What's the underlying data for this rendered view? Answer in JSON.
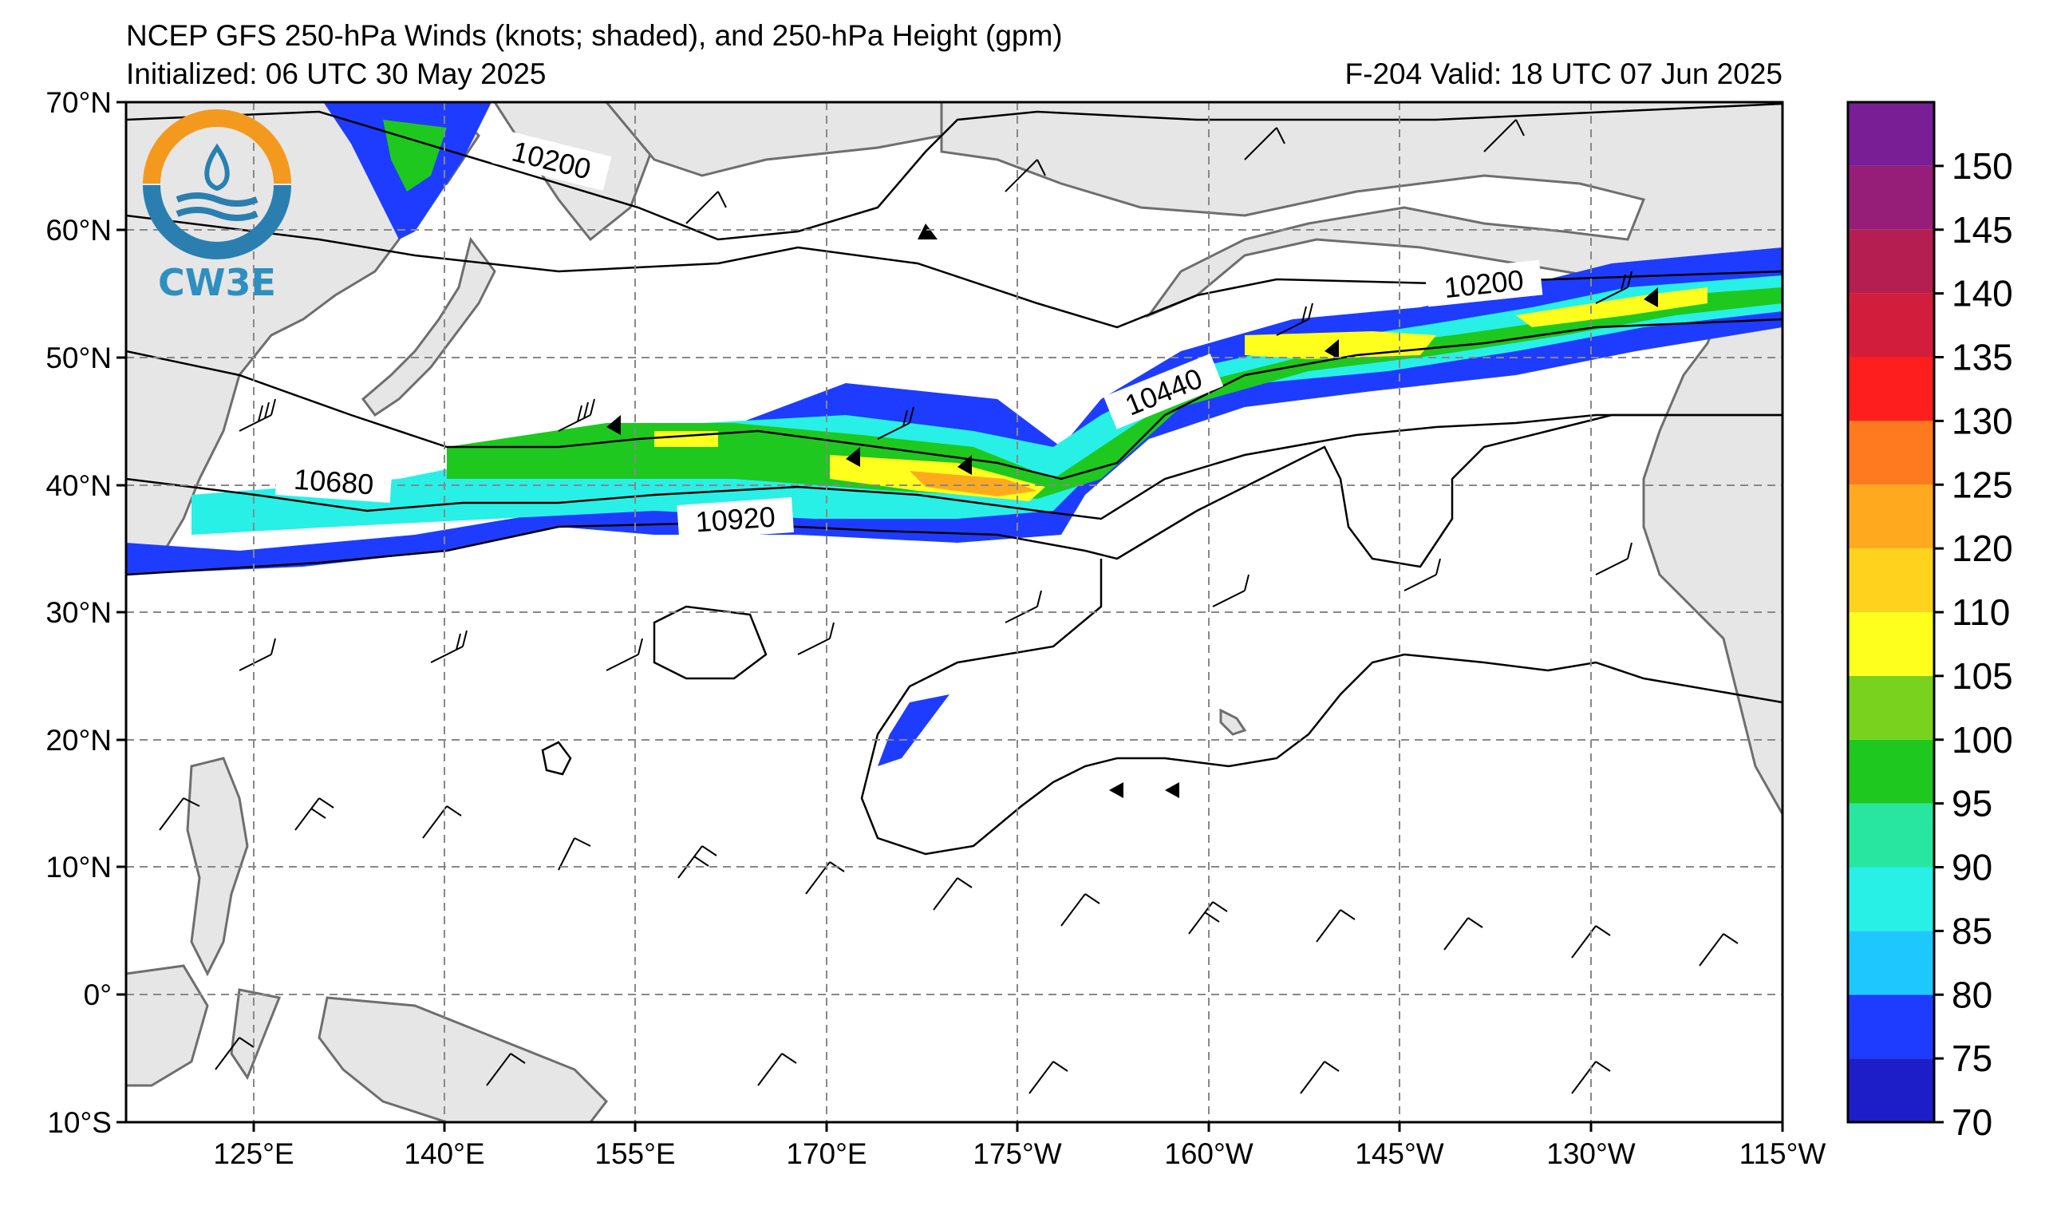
{
  "title": {
    "line1": "NCEP GFS 250-hPa Winds (knots; shaded), and 250-hPa Height (gpm)",
    "line2": "Initialized: 06 UTC 30 May 2025",
    "valid": "F-204  Valid: 18 UTC 07 Jun 2025"
  },
  "logo": {
    "text": "CW3E"
  },
  "map_axes": {
    "lat_labels": [
      "70°N",
      "60°N",
      "50°N",
      "40°N",
      "30°N",
      "20°N",
      "10°N",
      "0°",
      "10°S"
    ],
    "lon_labels": [
      "125°E",
      "140°E",
      "155°E",
      "170°E",
      "175°W",
      "160°W",
      "145°W",
      "130°W",
      "115°W"
    ],
    "lon_range": [
      "115°E",
      "115°W"
    ],
    "lat_range": [
      "10°S",
      "70°N"
    ],
    "gridlines": "dashed"
  },
  "height_contours": {
    "units": "gpm",
    "labels": [
      "10200",
      "10200",
      "10440",
      "10680",
      "10920"
    ]
  },
  "colorbar": {
    "units": "knots",
    "levels": [
      70,
      75,
      80,
      85,
      90,
      95,
      100,
      105,
      110,
      120,
      125,
      130,
      135,
      140,
      145,
      150,
      155
    ],
    "colors": [
      "#1e1ec8",
      "#1e3cff",
      "#1ec8ff",
      "#28f0e6",
      "#28e6a0",
      "#1ec81e",
      "#78d21e",
      "#ffff1e",
      "#ffd21e",
      "#ffaa1e",
      "#ff7a1e",
      "#ff1e1e",
      "#d21e3c",
      "#b41e50",
      "#961e78",
      "#7a1e96"
    ],
    "labels": [
      "70",
      "75",
      "80",
      "85",
      "90",
      "95",
      "100",
      "105",
      "110",
      "120",
      "125",
      "130",
      "135",
      "140",
      "145",
      "150"
    ]
  },
  "map_colors": {
    "land": "#e6e6e6",
    "coast": "#6e6e6e",
    "ocean": "#ffffff"
  }
}
